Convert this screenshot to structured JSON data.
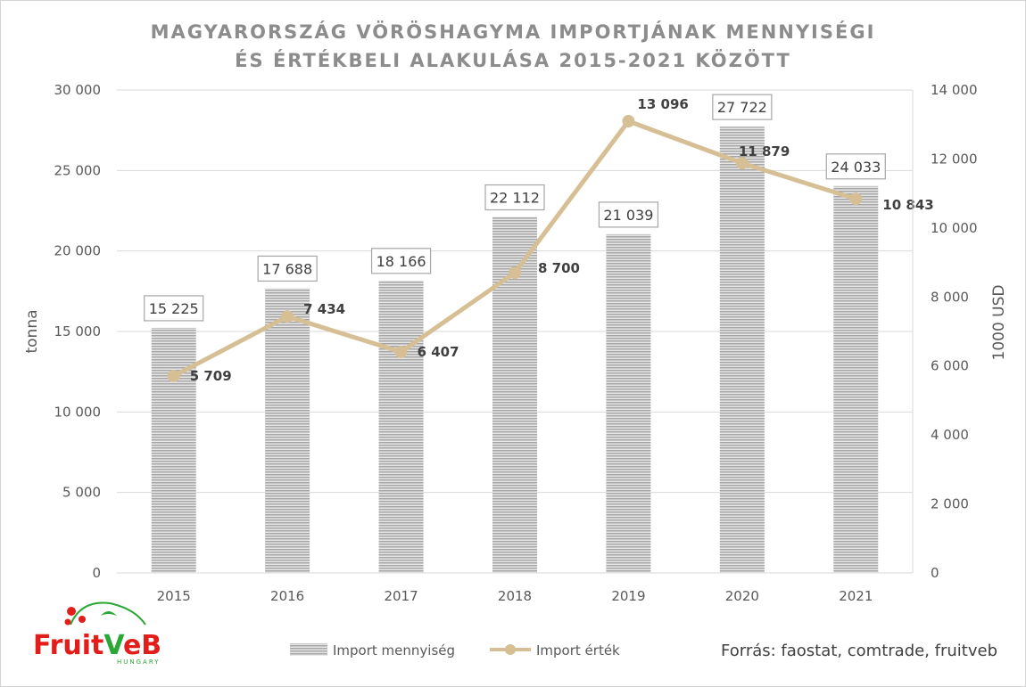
{
  "chart_data": {
    "type": "bar+line",
    "title_lines": [
      "MAGYARORSZÁG VÖRÖSHAGYMA IMPORTJÁNAK MENNYISÉGI",
      "ÉS ÉRTÉKBELI ALAKULÁSA 2015-2021 KÖZÖTT"
    ],
    "categories": [
      "2015",
      "2016",
      "2017",
      "2018",
      "2019",
      "2020",
      "2021"
    ],
    "series": [
      {
        "name": "Import mennyiség",
        "type": "bar",
        "axis": "left",
        "values": [
          15225,
          17688,
          18166,
          22112,
          21039,
          27722,
          24033
        ],
        "labels": [
          "15 225",
          "17 688",
          "18 166",
          "22 112",
          "21 039",
          "27 722",
          "24 033"
        ],
        "color": "#a6a6a6"
      },
      {
        "name": "Import érték",
        "type": "line",
        "axis": "right",
        "values": [
          5709,
          7434,
          6407,
          8700,
          13096,
          11879,
          10843
        ],
        "labels": [
          "5 709",
          "7 434",
          "6 407",
          "8 700",
          "13 096",
          "11 879",
          "10 843"
        ],
        "color": "#d6bf94"
      }
    ],
    "y_left": {
      "label": "tonna",
      "ylim": [
        0,
        30000
      ],
      "ticks": [
        0,
        5000,
        10000,
        15000,
        20000,
        25000,
        30000
      ],
      "tick_labels": [
        "0",
        "5 000",
        "10 000",
        "15 000",
        "20 000",
        "25 000",
        "30 000"
      ]
    },
    "y_right": {
      "label": "1000 USD",
      "ylim": [
        0,
        14000
      ],
      "ticks": [
        0,
        2000,
        4000,
        6000,
        8000,
        10000,
        12000,
        14000
      ],
      "tick_labels": [
        "0",
        "2 000",
        "4 000",
        "6 000",
        "8 000",
        "10 000",
        "12 000",
        "14 000"
      ]
    },
    "grid": true,
    "legend_position": "bottom"
  },
  "source_note": "Forrás: faostat, comtrade, fruitveb",
  "logo": {
    "name": "FruitVeB Hungary logo",
    "text_prefix": "Fruit",
    "text_v": "V",
    "text_suffix": "eB",
    "subtext": "HUNGARY"
  },
  "colors": {
    "bar": "#a6a6a6",
    "line": "#d6bf94",
    "grid": "#d9d9d9",
    "title": "#8c8c8c"
  }
}
